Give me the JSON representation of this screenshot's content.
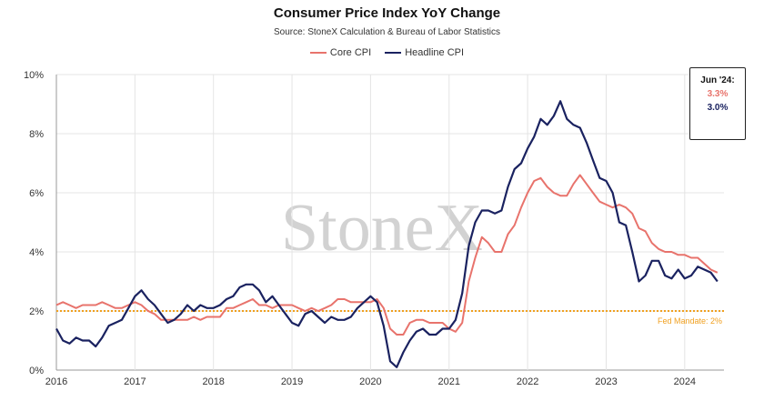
{
  "chart_data": {
    "type": "line",
    "title": "Consumer Price Index YoY Change",
    "subtitle": "Source: StoneX Calculation & Bureau of Labor Statistics",
    "x_ticks": [
      "2016",
      "2017",
      "2018",
      "2019",
      "2020",
      "2021",
      "2022",
      "2023",
      "2024"
    ],
    "y_ticks": [
      "0%",
      "2%",
      "4%",
      "6%",
      "8%",
      "10%"
    ],
    "ylim": [
      0,
      10
    ],
    "xlim": [
      2016.0,
      2024.5
    ],
    "grid": true,
    "legend_position": "top-center",
    "x": [
      2016.0,
      2016.083,
      2016.167,
      2016.25,
      2016.333,
      2016.417,
      2016.5,
      2016.583,
      2016.667,
      2016.75,
      2016.833,
      2016.917,
      2017.0,
      2017.083,
      2017.167,
      2017.25,
      2017.333,
      2017.417,
      2017.5,
      2017.583,
      2017.667,
      2017.75,
      2017.833,
      2017.917,
      2018.0,
      2018.083,
      2018.167,
      2018.25,
      2018.333,
      2018.417,
      2018.5,
      2018.583,
      2018.667,
      2018.75,
      2018.833,
      2018.917,
      2019.0,
      2019.083,
      2019.167,
      2019.25,
      2019.333,
      2019.417,
      2019.5,
      2019.583,
      2019.667,
      2019.75,
      2019.833,
      2019.917,
      2020.0,
      2020.083,
      2020.167,
      2020.25,
      2020.333,
      2020.417,
      2020.5,
      2020.583,
      2020.667,
      2020.75,
      2020.833,
      2020.917,
      2021.0,
      2021.083,
      2021.167,
      2021.25,
      2021.333,
      2021.417,
      2021.5,
      2021.583,
      2021.667,
      2021.75,
      2021.833,
      2021.917,
      2022.0,
      2022.083,
      2022.167,
      2022.25,
      2022.333,
      2022.417,
      2022.5,
      2022.583,
      2022.667,
      2022.75,
      2022.833,
      2022.917,
      2023.0,
      2023.083,
      2023.167,
      2023.25,
      2023.333,
      2023.417,
      2023.5,
      2023.583,
      2023.667,
      2023.75,
      2023.833,
      2023.917,
      2024.0,
      2024.083,
      2024.167,
      2024.25,
      2024.333,
      2024.417
    ],
    "series": [
      {
        "name": "Core CPI",
        "color": "#e8736c",
        "values": [
          2.2,
          2.3,
          2.2,
          2.1,
          2.2,
          2.2,
          2.2,
          2.3,
          2.2,
          2.1,
          2.1,
          2.2,
          2.3,
          2.2,
          2.0,
          1.9,
          1.7,
          1.7,
          1.7,
          1.7,
          1.7,
          1.8,
          1.7,
          1.8,
          1.8,
          1.8,
          2.1,
          2.1,
          2.2,
          2.3,
          2.4,
          2.2,
          2.2,
          2.1,
          2.2,
          2.2,
          2.2,
          2.1,
          2.0,
          2.1,
          2.0,
          2.1,
          2.2,
          2.4,
          2.4,
          2.3,
          2.3,
          2.3,
          2.3,
          2.4,
          2.1,
          1.4,
          1.2,
          1.2,
          1.6,
          1.7,
          1.7,
          1.6,
          1.6,
          1.6,
          1.4,
          1.3,
          1.6,
          3.0,
          3.8,
          4.5,
          4.3,
          4.0,
          4.0,
          4.6,
          4.9,
          5.5,
          6.0,
          6.4,
          6.5,
          6.2,
          6.0,
          5.9,
          5.9,
          6.3,
          6.6,
          6.3,
          6.0,
          5.7,
          5.6,
          5.5,
          5.6,
          5.5,
          5.3,
          4.8,
          4.7,
          4.3,
          4.1,
          4.0,
          4.0,
          3.9,
          3.9,
          3.8,
          3.8,
          3.6,
          3.4,
          3.3
        ]
      },
      {
        "name": "Headline CPI",
        "color": "#1a2260",
        "values": [
          1.4,
          1.0,
          0.9,
          1.1,
          1.0,
          1.0,
          0.8,
          1.1,
          1.5,
          1.6,
          1.7,
          2.1,
          2.5,
          2.7,
          2.4,
          2.2,
          1.9,
          1.6,
          1.7,
          1.9,
          2.2,
          2.0,
          2.2,
          2.1,
          2.1,
          2.2,
          2.4,
          2.5,
          2.8,
          2.9,
          2.9,
          2.7,
          2.3,
          2.5,
          2.2,
          1.9,
          1.6,
          1.5,
          1.9,
          2.0,
          1.8,
          1.6,
          1.8,
          1.7,
          1.7,
          1.8,
          2.1,
          2.3,
          2.5,
          2.3,
          1.5,
          0.3,
          0.1,
          0.6,
          1.0,
          1.3,
          1.4,
          1.2,
          1.2,
          1.4,
          1.4,
          1.7,
          2.6,
          4.2,
          5.0,
          5.4,
          5.4,
          5.3,
          5.4,
          6.2,
          6.8,
          7.0,
          7.5,
          7.9,
          8.5,
          8.3,
          8.6,
          9.1,
          8.5,
          8.3,
          8.2,
          7.7,
          7.1,
          6.5,
          6.4,
          6.0,
          5.0,
          4.9,
          4.0,
          3.0,
          3.2,
          3.7,
          3.7,
          3.2,
          3.1,
          3.4,
          3.1,
          3.2,
          3.5,
          3.4,
          3.3,
          3.0
        ]
      }
    ],
    "reference_line": {
      "value": 2,
      "label": "Fed Mandate: 2%",
      "color": "#f0a020"
    },
    "callout": {
      "title": "Jun '24:",
      "core": "3.3%",
      "headline": "3.0%"
    },
    "watermark": "StoneX"
  }
}
